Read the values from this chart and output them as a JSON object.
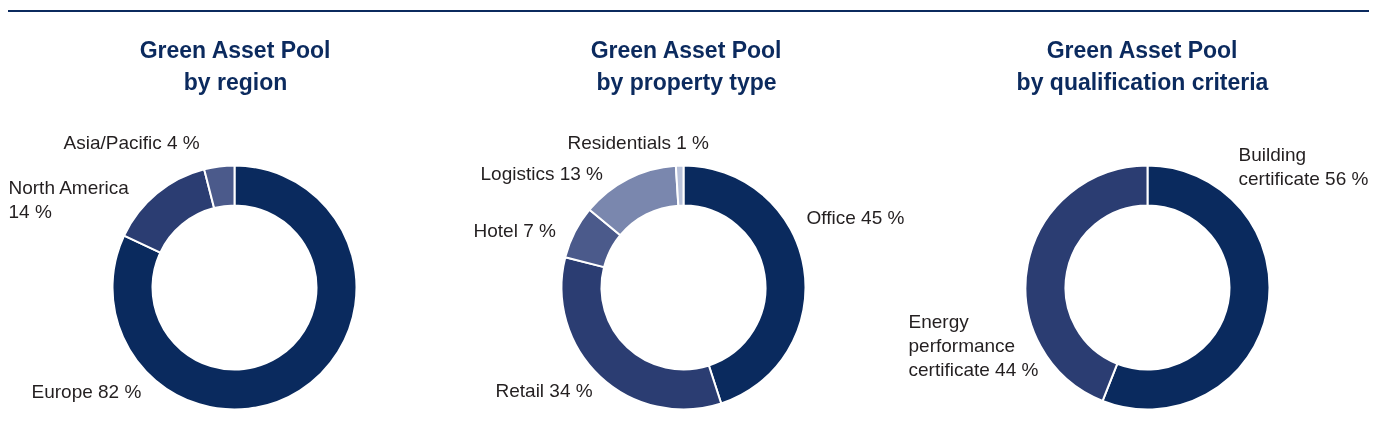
{
  "chart_data": [
    {
      "type": "donut",
      "title": "Green Asset Pool\nby region",
      "categories": [
        "Europe",
        "North America",
        "Asia/Pacific"
      ],
      "values": [
        82,
        14,
        4
      ],
      "value_labels": [
        "82 %",
        "14 %",
        "4 %"
      ],
      "colors": [
        "#0a2a5e",
        "#2b3d72",
        "#4b5a8b"
      ]
    },
    {
      "type": "donut",
      "title": "Green Asset Pool\nby property type",
      "categories": [
        "Office",
        "Retail",
        "Hotel",
        "Logistics",
        "Residentials"
      ],
      "values": [
        45,
        34,
        7,
        13,
        1
      ],
      "value_labels": [
        "45 %",
        "34 %",
        "7 %",
        "13 %",
        "1 %"
      ],
      "colors": [
        "#0a2a5e",
        "#2b3d72",
        "#4b5a8b",
        "#7a87ae",
        "#b9c2da"
      ]
    },
    {
      "type": "donut",
      "title": "Green Asset Pool\nby qualification criteria",
      "categories": [
        "Building certificate",
        "Energy performance certificate"
      ],
      "values": [
        56,
        44
      ],
      "value_labels": [
        "56 %",
        "44 %"
      ],
      "colors": [
        "#0a2a5e",
        "#2b3d72"
      ]
    }
  ]
}
